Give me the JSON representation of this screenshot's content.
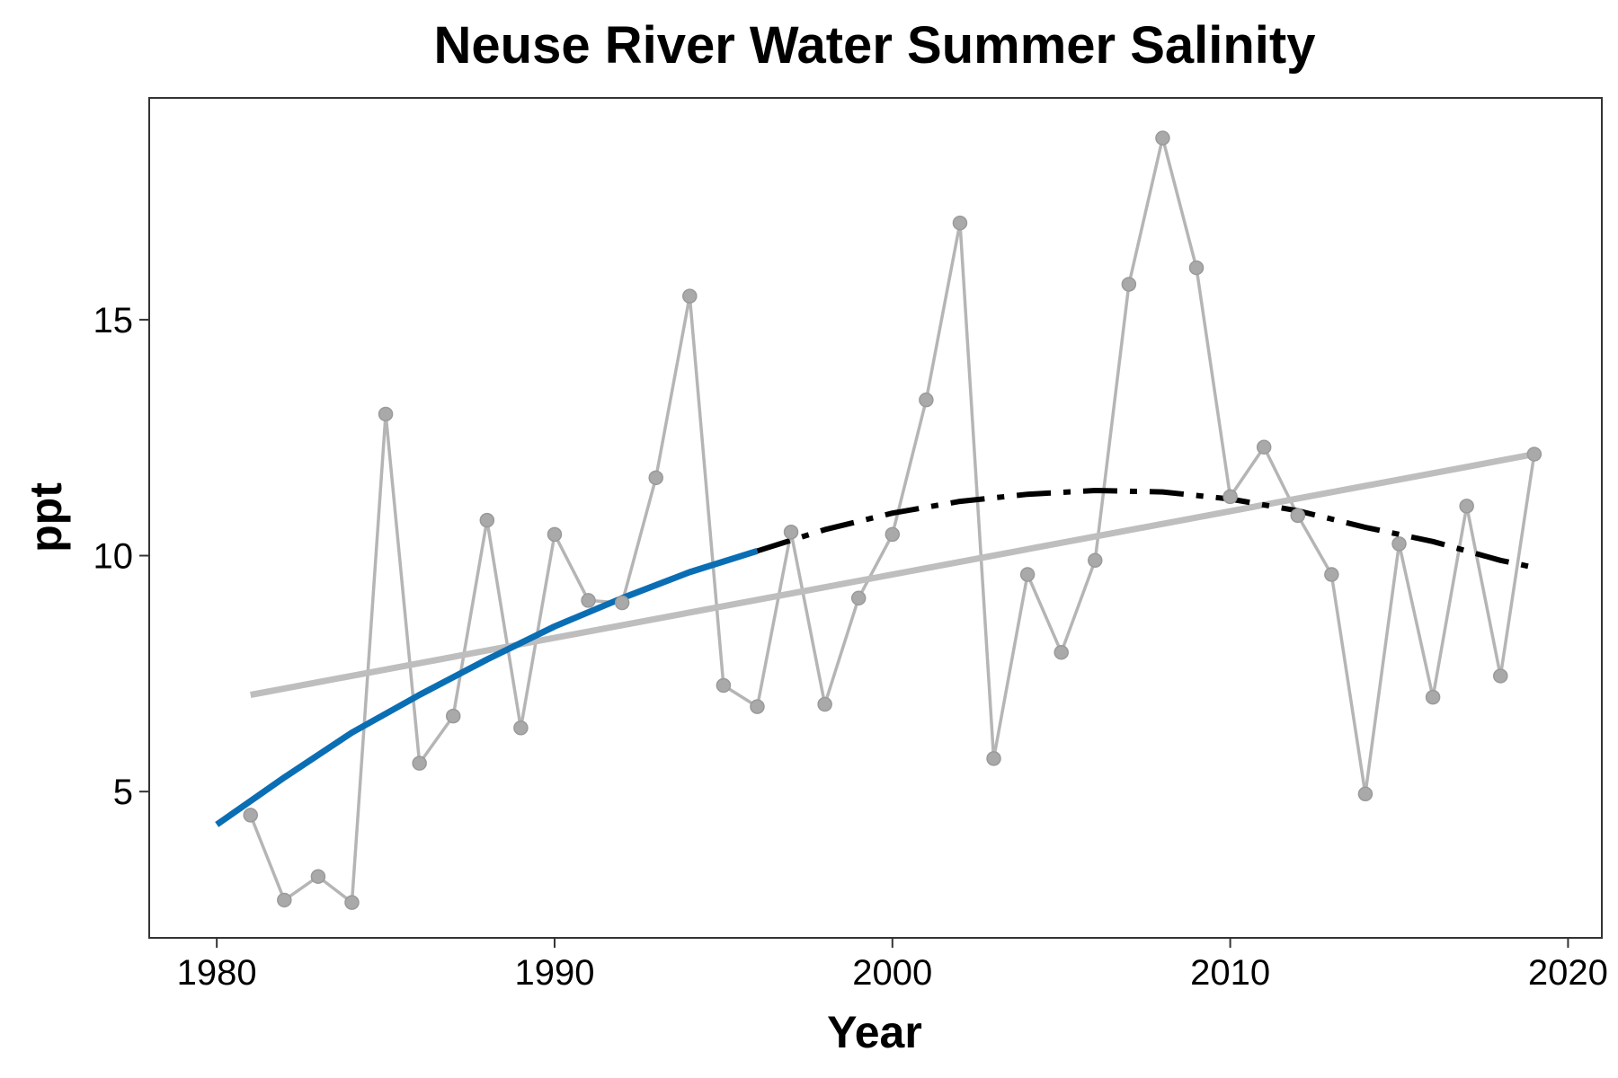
{
  "chart_data": {
    "type": "line",
    "title": "Neuse River Water Summer Salinity",
    "xlabel": "Year",
    "ylabel": "ppt",
    "xlim": [
      1978,
      2021
    ],
    "ylim": [
      1.9,
      19.7
    ],
    "xticks": [
      1980,
      1990,
      2000,
      2010,
      2020
    ],
    "yticks": [
      5,
      10,
      15
    ],
    "grid": false,
    "legend": "none",
    "series": [
      {
        "kind": "observed",
        "color": "#b5b5b5",
        "x": [
          1981,
          1982,
          1983,
          1984,
          1985,
          1986,
          1987,
          1988,
          1989,
          1990,
          1991,
          1992,
          1993,
          1994,
          1995,
          1996,
          1997,
          1998,
          1999,
          2000,
          2001,
          2002,
          2003,
          2004,
          2005,
          2006,
          2007,
          2008,
          2009,
          2010,
          2011,
          2012,
          2013,
          2014,
          2015,
          2016,
          2017,
          2018,
          2019
        ],
        "y": [
          4.5,
          2.7,
          3.2,
          2.65,
          13.0,
          5.6,
          6.6,
          10.75,
          6.35,
          10.45,
          9.05,
          9.0,
          11.65,
          15.5,
          7.25,
          6.8,
          10.5,
          6.85,
          9.1,
          10.45,
          13.3,
          17.05,
          5.7,
          9.6,
          7.95,
          9.9,
          15.75,
          18.85,
          16.1,
          11.25,
          12.3,
          10.85,
          9.6,
          4.95,
          10.25,
          7.0,
          11.05,
          7.45,
          12.15
        ]
      },
      {
        "kind": "linear-trend",
        "color": "#bebebe",
        "x": [
          1981,
          2019
        ],
        "y": [
          7.05,
          12.15
        ]
      },
      {
        "kind": "curve-fit-fitted",
        "color": "#0a6eb4",
        "x": [
          1980,
          1982,
          1984,
          1986,
          1988,
          1990,
          1992,
          1994,
          1996
        ],
        "y": [
          4.3,
          5.3,
          6.25,
          7.05,
          7.8,
          8.5,
          9.1,
          9.65,
          10.1
        ]
      },
      {
        "kind": "curve-fit-projected",
        "color": "#000000",
        "x": [
          1996,
          1998,
          2000,
          2002,
          2004,
          2006,
          2008,
          2010,
          2012,
          2014,
          2016,
          2018,
          2019
        ],
        "y": [
          10.1,
          10.55,
          10.9,
          11.15,
          11.3,
          11.38,
          11.35,
          11.2,
          10.95,
          10.6,
          10.3,
          9.9,
          9.75
        ]
      }
    ]
  }
}
